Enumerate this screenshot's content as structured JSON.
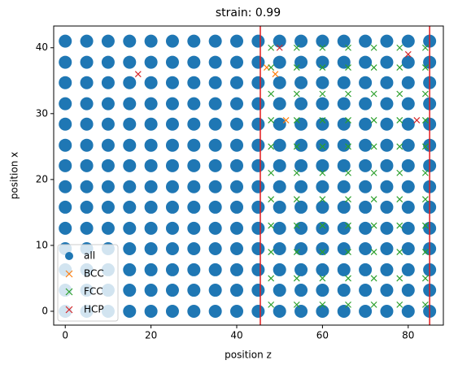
{
  "chart_data": {
    "type": "scatter",
    "title": "strain: 0.99",
    "xlabel": "position z",
    "ylabel": "position x",
    "xlim": [
      -2.7,
      88.2
    ],
    "ylim": [
      -2.1,
      43.3
    ],
    "xticks": [
      0,
      20,
      40,
      60,
      80
    ],
    "yticks": [
      0,
      10,
      20,
      30,
      40
    ],
    "grid": false,
    "legend": "lower left",
    "vlines": [
      45.5,
      85
    ],
    "vline_color": "#e31a1c",
    "series": [
      {
        "name": "all",
        "color": "#1f77b4",
        "marker": "o",
        "x": [
          0,
          5,
          10,
          15,
          20,
          25,
          30,
          35,
          40,
          45,
          50,
          55,
          60,
          65,
          70,
          75,
          80,
          85,
          0,
          5,
          10,
          15,
          20,
          25,
          30,
          35,
          40,
          45,
          50,
          55,
          60,
          65,
          70,
          75,
          80,
          85,
          0,
          5,
          10,
          15,
          20,
          25,
          30,
          35,
          40,
          45,
          50,
          55,
          60,
          65,
          70,
          75,
          80,
          85,
          0,
          5,
          10,
          15,
          20,
          25,
          30,
          35,
          40,
          45,
          50,
          55,
          60,
          65,
          70,
          75,
          80,
          85,
          0,
          5,
          10,
          15,
          20,
          25,
          30,
          35,
          40,
          45,
          50,
          55,
          60,
          65,
          70,
          75,
          80,
          85,
          0,
          5,
          10,
          15,
          20,
          25,
          30,
          35,
          40,
          45,
          50,
          55,
          60,
          65,
          70,
          75,
          80,
          85,
          0,
          5,
          10,
          15,
          20,
          25,
          30,
          35,
          40,
          45,
          50,
          55,
          60,
          65,
          70,
          75,
          80,
          85,
          0,
          5,
          10,
          15,
          20,
          25,
          30,
          35,
          40,
          45,
          50,
          55,
          60,
          65,
          70,
          75,
          80,
          85,
          0,
          5,
          10,
          15,
          20,
          25,
          30,
          35,
          40,
          45,
          50,
          55,
          60,
          65,
          70,
          75,
          80,
          85,
          0,
          5,
          10,
          15,
          20,
          25,
          30,
          35,
          40,
          45,
          50,
          55,
          60,
          65,
          70,
          75,
          80,
          85,
          0,
          5,
          10,
          15,
          20,
          25,
          30,
          35,
          40,
          45,
          50,
          55,
          60,
          65,
          70,
          75,
          80,
          85,
          0,
          5,
          10,
          15,
          20,
          25,
          30,
          35,
          40,
          45,
          50,
          55,
          60,
          65,
          70,
          75,
          80,
          85,
          0,
          5,
          10,
          15,
          20,
          25,
          30,
          35,
          40,
          45,
          50,
          55,
          60,
          65,
          70,
          75,
          80,
          85,
          0,
          5,
          10,
          15,
          20,
          25,
          30,
          35,
          40,
          45,
          50,
          55,
          60,
          65,
          70,
          75,
          80,
          85
        ],
        "y": [
          0,
          0,
          0,
          0,
          0,
          0,
          0,
          0,
          0,
          0,
          0,
          0,
          0,
          0,
          0,
          0,
          0,
          0,
          3.2,
          3.2,
          3.2,
          3.2,
          3.2,
          3.2,
          3.2,
          3.2,
          3.2,
          3.2,
          3.2,
          3.2,
          3.2,
          3.2,
          3.2,
          3.2,
          3.2,
          3.2,
          6.3,
          6.3,
          6.3,
          6.3,
          6.3,
          6.3,
          6.3,
          6.3,
          6.3,
          6.3,
          6.3,
          6.3,
          6.3,
          6.3,
          6.3,
          6.3,
          6.3,
          6.3,
          9.5,
          9.5,
          9.5,
          9.5,
          9.5,
          9.5,
          9.5,
          9.5,
          9.5,
          9.5,
          9.5,
          9.5,
          9.5,
          9.5,
          9.5,
          9.5,
          9.5,
          9.5,
          12.6,
          12.6,
          12.6,
          12.6,
          12.6,
          12.6,
          12.6,
          12.6,
          12.6,
          12.6,
          12.6,
          12.6,
          12.6,
          12.6,
          12.6,
          12.6,
          12.6,
          12.6,
          15.8,
          15.8,
          15.8,
          15.8,
          15.8,
          15.8,
          15.8,
          15.8,
          15.8,
          15.8,
          15.8,
          15.8,
          15.8,
          15.8,
          15.8,
          15.8,
          15.8,
          15.8,
          18.9,
          18.9,
          18.9,
          18.9,
          18.9,
          18.9,
          18.9,
          18.9,
          18.9,
          18.9,
          18.9,
          18.9,
          18.9,
          18.9,
          18.9,
          18.9,
          18.9,
          18.9,
          22.1,
          22.1,
          22.1,
          22.1,
          22.1,
          22.1,
          22.1,
          22.1,
          22.1,
          22.1,
          22.1,
          22.1,
          22.1,
          22.1,
          22.1,
          22.1,
          22.1,
          22.1,
          25.2,
          25.2,
          25.2,
          25.2,
          25.2,
          25.2,
          25.2,
          25.2,
          25.2,
          25.2,
          25.2,
          25.2,
          25.2,
          25.2,
          25.2,
          25.2,
          25.2,
          25.2,
          28.4,
          28.4,
          28.4,
          28.4,
          28.4,
          28.4,
          28.4,
          28.4,
          28.4,
          28.4,
          28.4,
          28.4,
          28.4,
          28.4,
          28.4,
          28.4,
          28.4,
          28.4,
          31.5,
          31.5,
          31.5,
          31.5,
          31.5,
          31.5,
          31.5,
          31.5,
          31.5,
          31.5,
          31.5,
          31.5,
          31.5,
          31.5,
          31.5,
          31.5,
          31.5,
          31.5,
          34.7,
          34.7,
          34.7,
          34.7,
          34.7,
          34.7,
          34.7,
          34.7,
          34.7,
          34.7,
          34.7,
          34.7,
          34.7,
          34.7,
          34.7,
          34.7,
          34.7,
          34.7,
          37.8,
          37.8,
          37.8,
          37.8,
          37.8,
          37.8,
          37.8,
          37.8,
          37.8,
          37.8,
          37.8,
          37.8,
          37.8,
          37.8,
          37.8,
          37.8,
          37.8,
          37.8,
          41,
          41,
          41,
          41,
          41,
          41,
          41,
          41,
          41,
          41,
          41,
          41,
          41,
          41,
          41,
          41,
          41,
          41
        ]
      },
      {
        "name": "BCC",
        "color": "#ff7f0e",
        "marker": "x",
        "x": [
          51.5,
          49,
          47
        ],
        "y": [
          29,
          36,
          37
        ]
      },
      {
        "name": "FCC",
        "color": "#2ca02c",
        "marker": "x",
        "x": [
          48,
          54,
          60,
          66,
          72,
          78,
          84,
          48,
          54,
          60,
          66,
          72,
          78,
          84,
          48,
          54,
          60,
          66,
          72,
          78,
          84,
          48,
          54,
          60,
          66,
          72,
          78,
          84,
          48,
          54,
          60,
          66,
          72,
          78,
          84,
          48,
          54,
          60,
          66,
          72,
          78,
          84,
          48,
          54,
          60,
          66,
          72,
          78,
          84,
          48,
          54,
          60,
          66,
          72,
          78,
          84,
          48,
          54,
          60,
          66,
          72,
          78,
          84,
          48,
          54,
          60,
          66,
          72,
          78,
          84,
          48,
          54,
          60,
          66,
          72,
          78,
          84
        ],
        "y": [
          1,
          1,
          1,
          1,
          1,
          1,
          1,
          5,
          5,
          5,
          5,
          5,
          5,
          5,
          9,
          9,
          9,
          9,
          9,
          9,
          9,
          13,
          13,
          13,
          13,
          13,
          13,
          13,
          17,
          17,
          17,
          17,
          17,
          17,
          17,
          21,
          21,
          21,
          21,
          21,
          21,
          21,
          25,
          25,
          25,
          25,
          25,
          25,
          25,
          29,
          29,
          29,
          29,
          29,
          29,
          29,
          33,
          33,
          33,
          33,
          33,
          33,
          33,
          37,
          37,
          37,
          37,
          37,
          37,
          37,
          40,
          40,
          40,
          40,
          40,
          40,
          40
        ]
      },
      {
        "name": "HCP",
        "color": "#d62728",
        "marker": "x",
        "x": [
          17,
          50,
          80,
          82
        ],
        "y": [
          36,
          40,
          39,
          29
        ]
      }
    ]
  }
}
